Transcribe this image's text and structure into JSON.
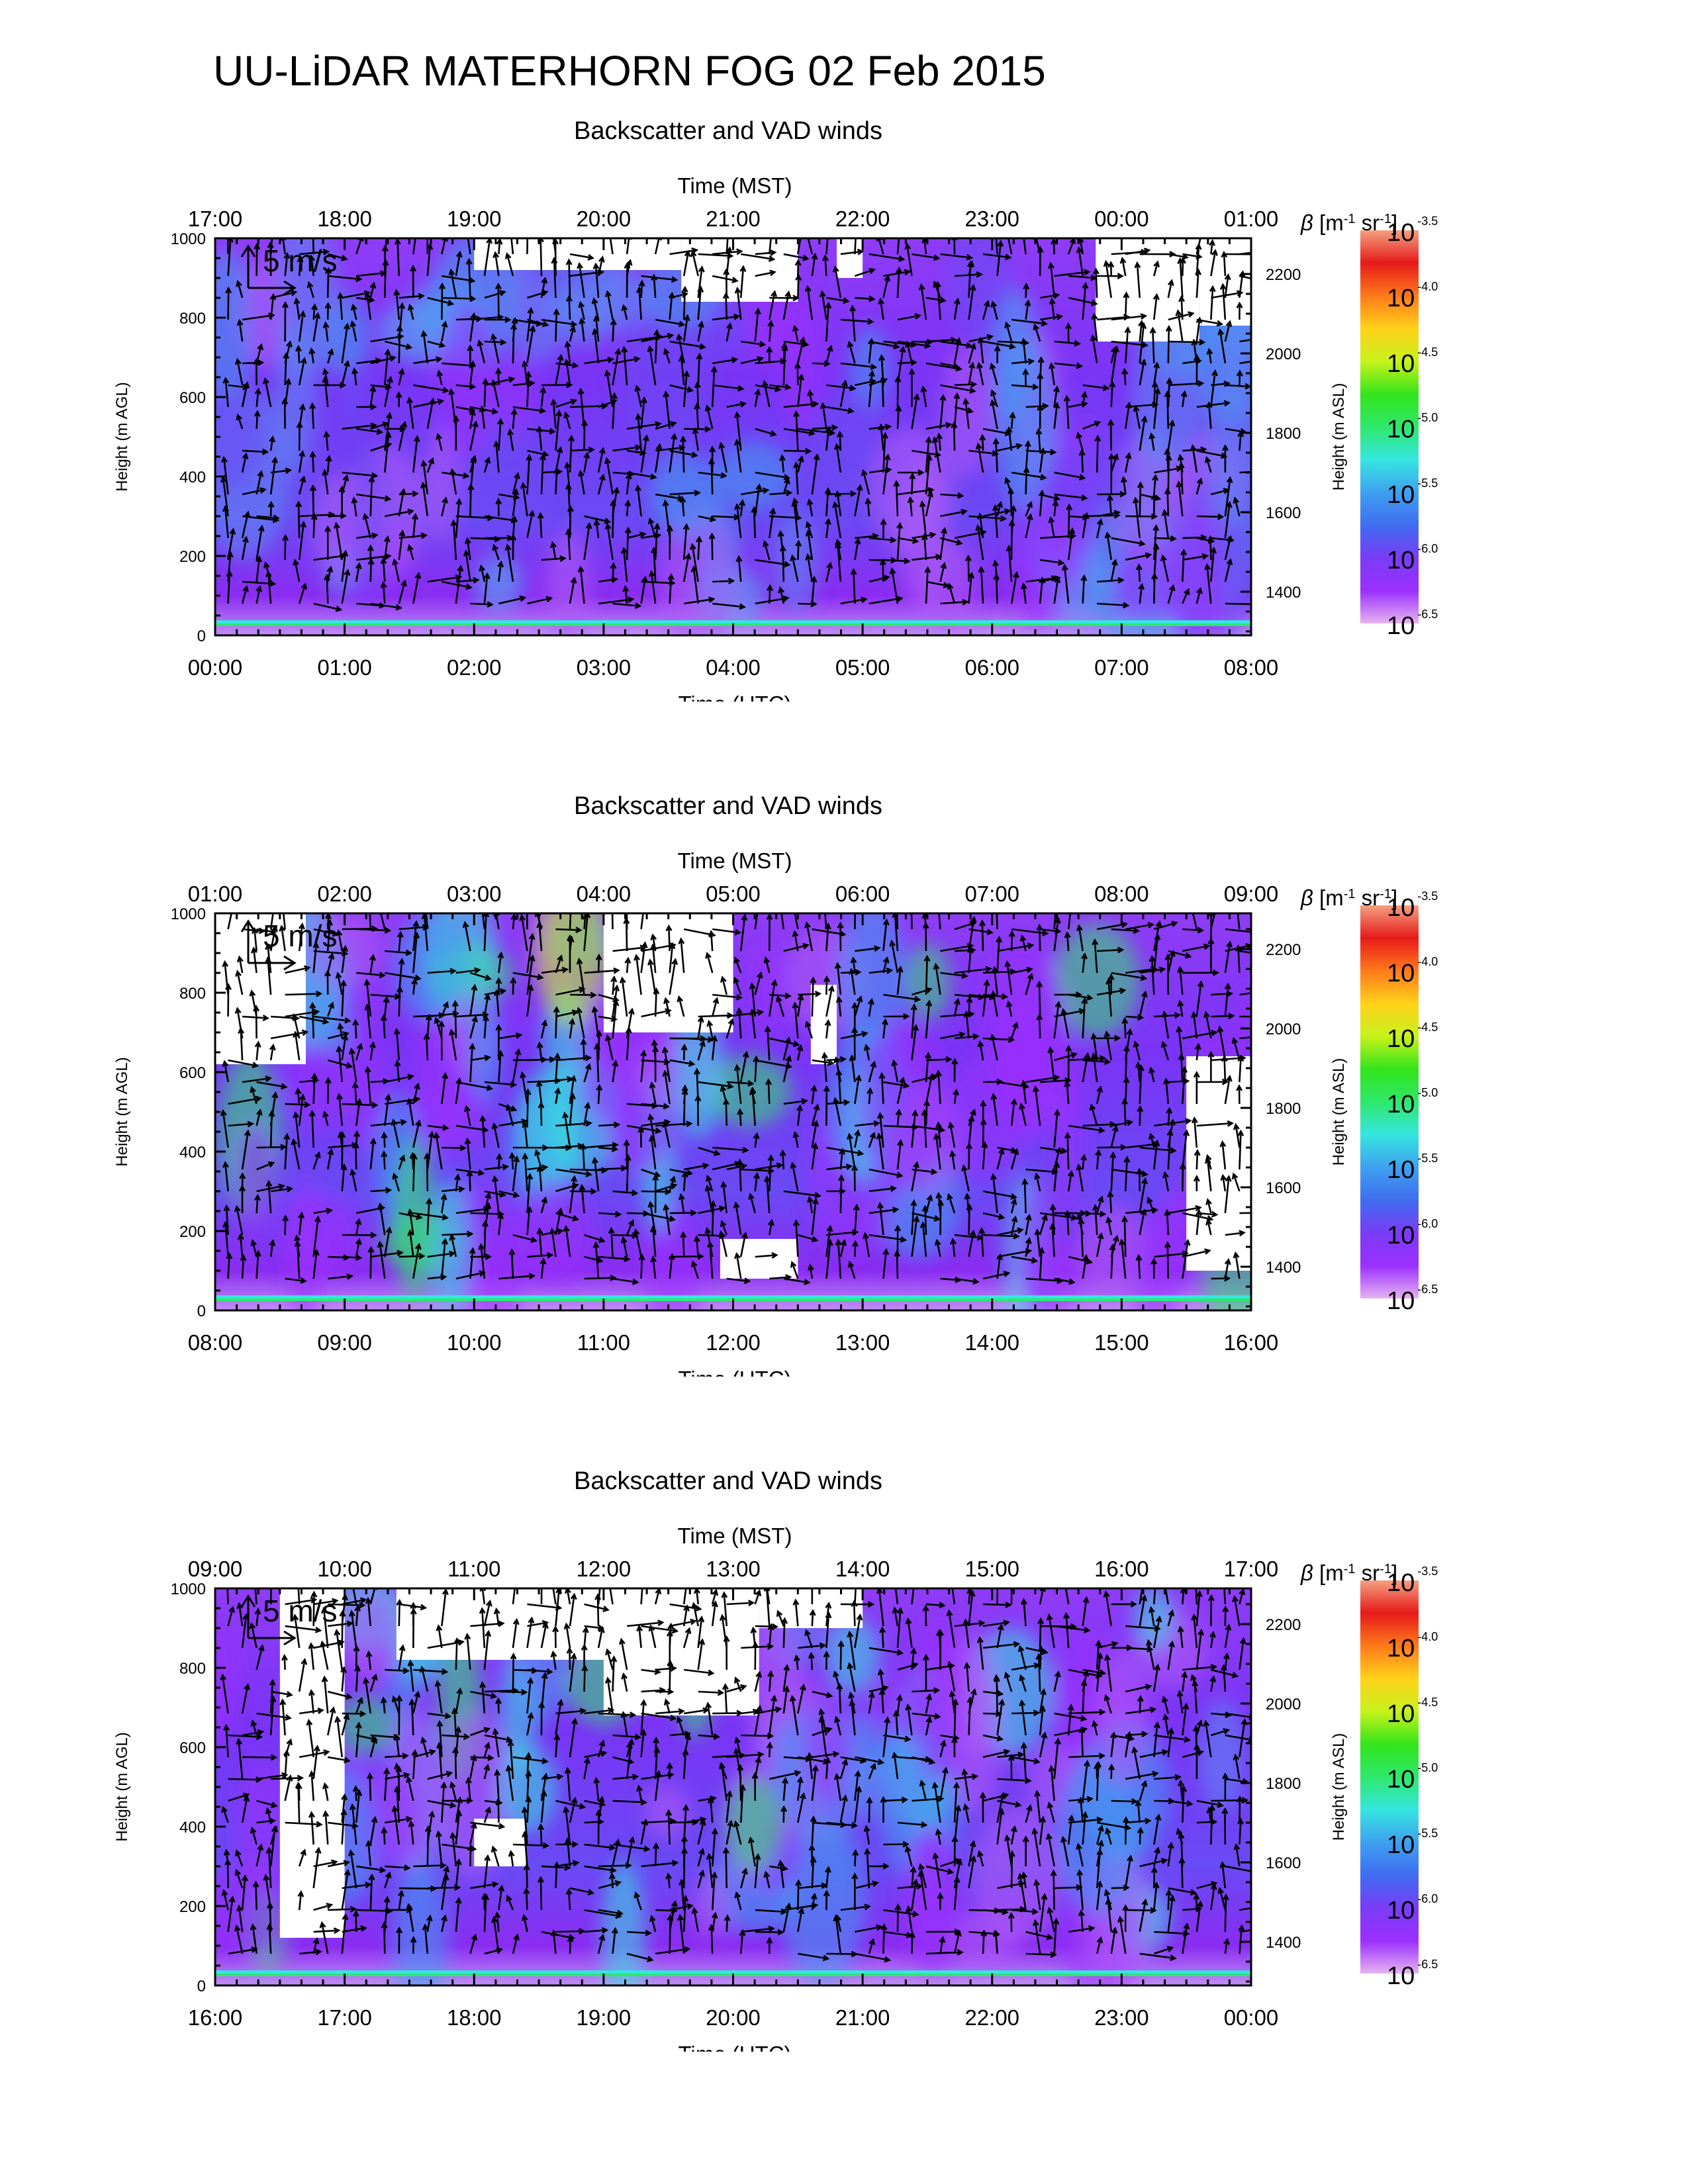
{
  "title": "UU-LiDAR MATERHORN FOG  02 Feb 2015",
  "colors": {
    "axis": "#000000",
    "background": "#ffffff",
    "arrow": "#000000",
    "colorbar": [
      "#e6b3f0",
      "#9b30ff",
      "#7a3cf7",
      "#3f6df0",
      "#3fa0f0",
      "#35e6e0",
      "#2ee86c",
      "#32e41a",
      "#c8f21a",
      "#ffd21a",
      "#ff7a1a",
      "#e61a1a",
      "#f4a080"
    ]
  },
  "chart_data": [
    {
      "type": "heatmap",
      "title": "Backscatter and VAD winds",
      "xlabel": "Time (UTC)",
      "x2label": "Time (MST)",
      "ylabel": "Height (m AGL)",
      "y2label": "Height (m ASL)",
      "x_ticks": [
        "00:00",
        "01:00",
        "02:00",
        "03:00",
        "04:00",
        "05:00",
        "06:00",
        "07:00",
        "08:00"
      ],
      "x2_ticks": [
        "17:00",
        "18:00",
        "19:00",
        "20:00",
        "21:00",
        "22:00",
        "23:00",
        "00:00",
        "01:00"
      ],
      "ylim": [
        0,
        1000
      ],
      "y_ticks": [
        "0",
        "200",
        "400",
        "600",
        "800",
        "1000"
      ],
      "y2lim": [
        1290,
        2290
      ],
      "y2_ticks": [
        "1400",
        "1600",
        "1800",
        "2000",
        "2200"
      ],
      "colorbar": {
        "label_sym": "β",
        "label_units": "[m",
        "label_u1": "-1",
        "label_mid": " sr",
        "label_u2": "-1",
        "label_end": "]",
        "base": "10",
        "exponents": [
          "-3.5",
          "-4.0",
          "-4.5",
          "-5.0",
          "-5.5",
          "-6.0",
          "-6.5"
        ]
      },
      "scale_arrow_label": "5 m/s",
      "data_window_hours": [
        0,
        8
      ],
      "profile_top_m": 1000,
      "gaps": [
        {
          "t": [
            2.0,
            3.6
          ],
          "h": [
            920,
            1000
          ]
        },
        {
          "t": [
            3.6,
            4.5
          ],
          "h": [
            840,
            1000
          ]
        },
        {
          "t": [
            4.8,
            5.0
          ],
          "h": [
            900,
            1000
          ]
        },
        {
          "t": [
            6.8,
            7.6
          ],
          "h": [
            740,
            1000
          ]
        },
        {
          "t": [
            7.6,
            8.0
          ],
          "h": [
            780,
            1000
          ]
        }
      ]
    },
    {
      "type": "heatmap",
      "title": "Backscatter and VAD winds",
      "xlabel": "Time (UTC)",
      "x2label": "Time (MST)",
      "ylabel": "Height (m AGL)",
      "y2label": "Height (m ASL)",
      "x_ticks": [
        "08:00",
        "09:00",
        "10:00",
        "11:00",
        "12:00",
        "13:00",
        "14:00",
        "15:00",
        "16:00"
      ],
      "x2_ticks": [
        "01:00",
        "02:00",
        "03:00",
        "04:00",
        "05:00",
        "06:00",
        "07:00",
        "08:00",
        "09:00"
      ],
      "ylim": [
        0,
        1000
      ],
      "y_ticks": [
        "0",
        "200",
        "400",
        "600",
        "800",
        "1000"
      ],
      "y2lim": [
        1290,
        2290
      ],
      "y2_ticks": [
        "1400",
        "1600",
        "1800",
        "2000",
        "2200"
      ],
      "colorbar": {
        "label_sym": "β",
        "label_units": "[m",
        "label_u1": "-1",
        "label_mid": " sr",
        "label_u2": "-1",
        "label_end": "]",
        "base": "10",
        "exponents": [
          "-3.5",
          "-4.0",
          "-4.5",
          "-5.0",
          "-5.5",
          "-6.0",
          "-6.5"
        ]
      },
      "scale_arrow_label": "5 m/s",
      "data_window_hours": [
        8,
        16
      ],
      "profile_top_m": 1000,
      "gaps": [
        {
          "t": [
            8.0,
            8.7
          ],
          "h": [
            620,
            1000
          ]
        },
        {
          "t": [
            11.0,
            12.0
          ],
          "h": [
            700,
            1000
          ]
        },
        {
          "t": [
            12.6,
            12.8
          ],
          "h": [
            620,
            820
          ]
        },
        {
          "t": [
            15.5,
            16.0
          ],
          "h": [
            100,
            640
          ]
        },
        {
          "t": [
            11.9,
            12.5
          ],
          "h": [
            80,
            180
          ]
        }
      ]
    },
    {
      "type": "heatmap",
      "title": "Backscatter and VAD winds",
      "xlabel": "Time (UTC)",
      "x2label": "Time (MST)",
      "ylabel": "Height (m AGL)",
      "y2label": "Height (m ASL)",
      "x_ticks": [
        "16:00",
        "17:00",
        "18:00",
        "19:00",
        "20:00",
        "21:00",
        "22:00",
        "23:00",
        "00:00"
      ],
      "x2_ticks": [
        "09:00",
        "10:00",
        "11:00",
        "12:00",
        "13:00",
        "14:00",
        "15:00",
        "16:00",
        "17:00"
      ],
      "ylim": [
        0,
        1000
      ],
      "y_ticks": [
        "0",
        "200",
        "400",
        "600",
        "800",
        "1000"
      ],
      "y2lim": [
        1290,
        2290
      ],
      "y2_ticks": [
        "1400",
        "1600",
        "1800",
        "2000",
        "2200"
      ],
      "colorbar": {
        "label_sym": "β",
        "label_units": "[m",
        "label_u1": "-1",
        "label_mid": " sr",
        "label_u2": "-1",
        "label_end": "]",
        "base": "10",
        "exponents": [
          "-3.5",
          "-4.0",
          "-4.5",
          "-5.0",
          "-5.5",
          "-6.0",
          "-6.5"
        ]
      },
      "scale_arrow_label": "5 m/s",
      "data_window_hours": [
        16,
        24
      ],
      "profile_top_m": 1000,
      "gaps": [
        {
          "t": [
            16.5,
            17.0
          ],
          "h": [
            120,
            1000
          ]
        },
        {
          "t": [
            17.4,
            19.0
          ],
          "h": [
            820,
            1000
          ]
        },
        {
          "t": [
            19.0,
            20.2
          ],
          "h": [
            680,
            1000
          ]
        },
        {
          "t": [
            18.0,
            18.4
          ],
          "h": [
            300,
            420
          ]
        },
        {
          "t": [
            20.2,
            21.0
          ],
          "h": [
            900,
            1000
          ]
        }
      ]
    }
  ]
}
